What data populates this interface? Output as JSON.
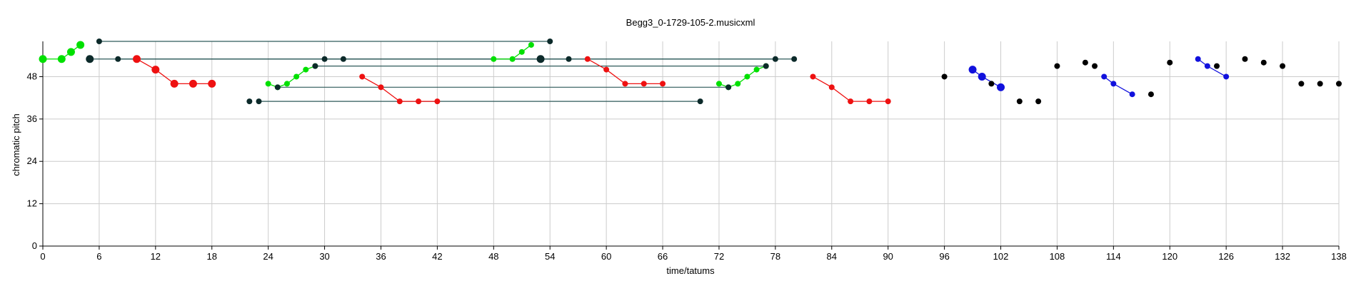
{
  "chart_data": {
    "type": "scatter",
    "title": "Begg3_0-1729-105-2.musicxml",
    "xlabel": "time/tatums",
    "ylabel": "chromatic pitch",
    "xlim": [
      0,
      138
    ],
    "ylim": [
      0,
      58
    ],
    "xticks": [
      0,
      6,
      12,
      18,
      24,
      30,
      36,
      42,
      48,
      54,
      60,
      66,
      72,
      78,
      84,
      90,
      96,
      102,
      108,
      114,
      120,
      126,
      132,
      138
    ],
    "yticks": [
      0,
      12,
      24,
      36,
      48
    ],
    "grid": true,
    "colors": {
      "green": "#00e000",
      "red": "#ee1111",
      "blue": "#1111dd",
      "dark": "#0c2a2a",
      "black": "#000000",
      "link": "#2e5a5a",
      "grid": "#cccccc"
    },
    "series": [
      {
        "color": "green",
        "connected": true,
        "points": [
          [
            0,
            53,
            "l"
          ],
          [
            2,
            53,
            "l"
          ],
          [
            3,
            55,
            "l"
          ],
          [
            4,
            57,
            "l"
          ]
        ]
      },
      {
        "color": "red",
        "connected": true,
        "points": [
          [
            10,
            53,
            "l"
          ],
          [
            12,
            50,
            "l"
          ],
          [
            14,
            46,
            "l"
          ],
          [
            16,
            46,
            "l"
          ],
          [
            18,
            46,
            "l"
          ]
        ]
      },
      {
        "color": "green",
        "connected": true,
        "points": [
          [
            24,
            46,
            "s"
          ],
          [
            25,
            45,
            "s"
          ],
          [
            26,
            46,
            "s"
          ],
          [
            27,
            48,
            "s"
          ],
          [
            28,
            50,
            "s"
          ],
          [
            29,
            51,
            "s"
          ]
        ]
      },
      {
        "color": "red",
        "connected": true,
        "points": [
          [
            34,
            48,
            "s"
          ],
          [
            36,
            45,
            "s"
          ],
          [
            38,
            41,
            "s"
          ],
          [
            40,
            41,
            "s"
          ],
          [
            42,
            41,
            "s"
          ]
        ]
      },
      {
        "color": "green",
        "connected": true,
        "points": [
          [
            48,
            53,
            "s"
          ],
          [
            50,
            53,
            "s"
          ],
          [
            51,
            55,
            "s"
          ],
          [
            52,
            57,
            "s"
          ]
        ]
      },
      {
        "color": "red",
        "connected": true,
        "points": [
          [
            58,
            53,
            "s"
          ],
          [
            60,
            50,
            "s"
          ],
          [
            62,
            46,
            "s"
          ],
          [
            64,
            46,
            "s"
          ],
          [
            66,
            46,
            "s"
          ]
        ]
      },
      {
        "color": "green",
        "connected": true,
        "points": [
          [
            72,
            46,
            "s"
          ],
          [
            73,
            45,
            "s"
          ],
          [
            74,
            46,
            "s"
          ],
          [
            75,
            48,
            "s"
          ],
          [
            76,
            50,
            "s"
          ],
          [
            77,
            51,
            "s"
          ]
        ]
      },
      {
        "color": "red",
        "connected": true,
        "points": [
          [
            82,
            48,
            "s"
          ],
          [
            84,
            45,
            "s"
          ],
          [
            86,
            41,
            "s"
          ],
          [
            88,
            41,
            "s"
          ],
          [
            90,
            41,
            "s"
          ]
        ]
      },
      {
        "color": "blue",
        "connected": true,
        "points": [
          [
            99,
            50,
            "l"
          ],
          [
            100,
            48,
            "l"
          ],
          [
            102,
            45,
            "l"
          ]
        ]
      },
      {
        "color": "blue",
        "connected": true,
        "points": [
          [
            113,
            48,
            "s"
          ],
          [
            114,
            46,
            "s"
          ],
          [
            116,
            43,
            "s"
          ]
        ]
      },
      {
        "color": "blue",
        "connected": true,
        "points": [
          [
            123,
            53,
            "s"
          ],
          [
            124,
            51,
            "s"
          ],
          [
            126,
            48,
            "s"
          ]
        ]
      },
      {
        "color": "dark",
        "connected": false,
        "points": [
          [
            5,
            53,
            "l"
          ],
          [
            6,
            58,
            "s"
          ],
          [
            8,
            53,
            "s"
          ],
          [
            22,
            41,
            "s"
          ],
          [
            23,
            41,
            "s"
          ],
          [
            25,
            45,
            "s"
          ],
          [
            29,
            51,
            "s"
          ],
          [
            30,
            53,
            "s"
          ],
          [
            32,
            53,
            "s"
          ],
          [
            53,
            53,
            "l"
          ],
          [
            54,
            58,
            "s"
          ],
          [
            56,
            53,
            "s"
          ],
          [
            70,
            41,
            "s"
          ],
          [
            73,
            45,
            "s"
          ],
          [
            77,
            51,
            "s"
          ],
          [
            78,
            53,
            "s"
          ],
          [
            80,
            53,
            "s"
          ]
        ]
      },
      {
        "color": "black",
        "connected": false,
        "points": [
          [
            96,
            48,
            "s"
          ],
          [
            101,
            46,
            "s"
          ],
          [
            104,
            41,
            "s"
          ],
          [
            106,
            41,
            "s"
          ],
          [
            108,
            51,
            "s"
          ],
          [
            111,
            52,
            "s"
          ],
          [
            112,
            51,
            "s"
          ],
          [
            118,
            43,
            "s"
          ],
          [
            120,
            52,
            "s"
          ],
          [
            125,
            51,
            "s"
          ],
          [
            128,
            53,
            "s"
          ],
          [
            130,
            52,
            "s"
          ],
          [
            132,
            51,
            "s"
          ],
          [
            134,
            46,
            "s"
          ],
          [
            136,
            46,
            "s"
          ],
          [
            138,
            46,
            "s"
          ]
        ]
      }
    ],
    "links": [
      [
        [
          6,
          58
        ],
        [
          54,
          58
        ]
      ],
      [
        [
          5,
          53
        ],
        [
          53,
          53
        ]
      ],
      [
        [
          8,
          53
        ],
        [
          56,
          53
        ]
      ],
      [
        [
          30,
          53
        ],
        [
          78,
          53
        ]
      ],
      [
        [
          32,
          53
        ],
        [
          80,
          53
        ]
      ],
      [
        [
          29,
          51
        ],
        [
          77,
          51
        ]
      ],
      [
        [
          25,
          45
        ],
        [
          73,
          45
        ]
      ],
      [
        [
          23,
          41
        ],
        [
          70,
          41
        ]
      ]
    ]
  }
}
